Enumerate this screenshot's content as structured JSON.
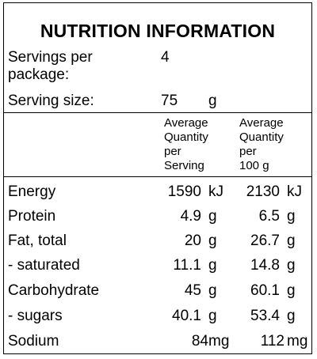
{
  "title": "NUTRITION INFORMATION",
  "servings_per_package": {
    "label_line1": "Servings per",
    "label_line2": "package:",
    "value": "4"
  },
  "serving_size": {
    "label": "Serving size:",
    "value": "75",
    "unit": "g"
  },
  "columns": {
    "per_serving": [
      "Average",
      "Quantity",
      "per",
      "Serving"
    ],
    "per_100g": [
      "Average",
      "Quantity",
      "per",
      "100 g"
    ]
  },
  "rows": [
    {
      "name": "Energy",
      "serving": "1590",
      "serving_unit": "kJ",
      "per100": "2130",
      "per100_unit": "kJ"
    },
    {
      "name": "Protein",
      "serving": "4.9",
      "serving_unit": "g",
      "per100": "6.5",
      "per100_unit": "g"
    },
    {
      "name": "Fat, total",
      "serving": "20",
      "serving_unit": "g",
      "per100": "26.7",
      "per100_unit": "g"
    },
    {
      "name": "- saturated",
      "serving": "11.1",
      "serving_unit": "g",
      "per100": "14.8",
      "per100_unit": "g"
    },
    {
      "name": "Carbohydrate",
      "serving": "45",
      "serving_unit": "g",
      "per100": "60.1",
      "per100_unit": "g"
    },
    {
      "name": "- sugars",
      "serving": "40.1",
      "serving_unit": "g",
      "per100": "53.4",
      "per100_unit": "g"
    },
    {
      "name": "Sodium",
      "serving": "84",
      "serving_unit": "mg",
      "per100": "112",
      "per100_unit": "mg"
    }
  ]
}
